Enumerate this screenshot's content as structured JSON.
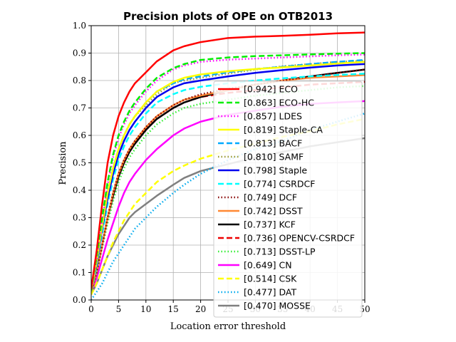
{
  "chart_data": {
    "type": "line",
    "title": "Precision plots of OPE on OTB2013",
    "xlabel": "Location error threshold",
    "ylabel": "Precision",
    "xlim": [
      0,
      50
    ],
    "ylim": [
      0,
      1.0
    ],
    "x_ticks": [
      0,
      5,
      10,
      15,
      20,
      25,
      30,
      35,
      40,
      45,
      50
    ],
    "y_ticks": [
      0.0,
      0.1,
      0.2,
      0.3,
      0.4,
      0.5,
      0.6,
      0.7,
      0.8,
      0.9,
      1.0
    ],
    "grid": true,
    "legend_position": "lower-right",
    "x": [
      0,
      1,
      2,
      3,
      4,
      5,
      6,
      7,
      8,
      10,
      12,
      15,
      17,
      20,
      25,
      30,
      35,
      40,
      45,
      50
    ],
    "series": [
      {
        "name": "ECO",
        "legend": "[0.942] ECO",
        "color": "#ff0000",
        "dash": "solid",
        "values": [
          0.04,
          0.18,
          0.35,
          0.5,
          0.6,
          0.67,
          0.72,
          0.76,
          0.79,
          0.83,
          0.87,
          0.91,
          0.925,
          0.94,
          0.955,
          0.96,
          0.963,
          0.967,
          0.972,
          0.975
        ]
      },
      {
        "name": "ECO-HC",
        "legend": "[0.863] ECO-HC",
        "color": "#00ee00",
        "dash": "dashed",
        "values": [
          0.035,
          0.16,
          0.3,
          0.43,
          0.53,
          0.6,
          0.65,
          0.69,
          0.72,
          0.77,
          0.81,
          0.845,
          0.86,
          0.875,
          0.884,
          0.889,
          0.892,
          0.895,
          0.898,
          0.9
        ]
      },
      {
        "name": "LDES",
        "legend": "[0.857] LDES",
        "color": "#ff00ff",
        "dash": "dotted",
        "values": [
          0.035,
          0.15,
          0.29,
          0.42,
          0.52,
          0.59,
          0.64,
          0.68,
          0.71,
          0.76,
          0.8,
          0.84,
          0.855,
          0.868,
          0.876,
          0.88,
          0.884,
          0.888,
          0.892,
          0.895
        ]
      },
      {
        "name": "Staple-CA",
        "legend": "[0.819] Staple-CA",
        "color": "#ffff00",
        "dash": "solid",
        "values": [
          0.03,
          0.14,
          0.27,
          0.39,
          0.48,
          0.55,
          0.6,
          0.64,
          0.67,
          0.72,
          0.76,
          0.795,
          0.81,
          0.822,
          0.834,
          0.842,
          0.848,
          0.855,
          0.862,
          0.868
        ]
      },
      {
        "name": "BACF",
        "legend": "[0.813] BACF",
        "color": "#00aaff",
        "dash": "dashed",
        "values": [
          0.03,
          0.14,
          0.27,
          0.39,
          0.48,
          0.55,
          0.6,
          0.64,
          0.67,
          0.72,
          0.76,
          0.79,
          0.805,
          0.815,
          0.83,
          0.842,
          0.85,
          0.86,
          0.868,
          0.875
        ]
      },
      {
        "name": "SAMF",
        "legend": "[0.810] SAMF",
        "color": "#999933",
        "dash": "dotted",
        "values": [
          0.03,
          0.14,
          0.27,
          0.39,
          0.48,
          0.55,
          0.6,
          0.64,
          0.67,
          0.71,
          0.75,
          0.79,
          0.8,
          0.81,
          0.825,
          0.84,
          0.852,
          0.86,
          0.868,
          0.872
        ]
      },
      {
        "name": "Staple",
        "legend": "[0.798] Staple",
        "color": "#0000ee",
        "dash": "solid",
        "values": [
          0.03,
          0.13,
          0.26,
          0.37,
          0.46,
          0.53,
          0.58,
          0.62,
          0.65,
          0.7,
          0.74,
          0.775,
          0.79,
          0.8,
          0.815,
          0.828,
          0.838,
          0.847,
          0.855,
          0.86
        ]
      },
      {
        "name": "CSRDCF",
        "legend": "[0.774] CSRDCF",
        "color": "#00ffff",
        "dash": "dashed",
        "values": [
          0.03,
          0.12,
          0.24,
          0.35,
          0.44,
          0.51,
          0.56,
          0.6,
          0.63,
          0.68,
          0.72,
          0.75,
          0.765,
          0.777,
          0.79,
          0.8,
          0.808,
          0.815,
          0.82,
          0.825
        ]
      },
      {
        "name": "DCF",
        "legend": "[0.749] DCF",
        "color": "#880000",
        "dash": "dotted",
        "values": [
          0.03,
          0.1,
          0.2,
          0.3,
          0.39,
          0.46,
          0.51,
          0.55,
          0.58,
          0.63,
          0.67,
          0.71,
          0.73,
          0.75,
          0.77,
          0.785,
          0.8,
          0.815,
          0.828,
          0.84
        ]
      },
      {
        "name": "DSST",
        "legend": "[0.742] DSST",
        "color": "#ff8833",
        "dash": "solid",
        "values": [
          0.03,
          0.1,
          0.2,
          0.3,
          0.39,
          0.46,
          0.51,
          0.55,
          0.58,
          0.63,
          0.67,
          0.71,
          0.73,
          0.745,
          0.765,
          0.785,
          0.8,
          0.81,
          0.815,
          0.82
        ]
      },
      {
        "name": "KCF",
        "legend": "[0.737] KCF",
        "color": "#000000",
        "dash": "solid",
        "values": [
          0.03,
          0.1,
          0.2,
          0.3,
          0.38,
          0.45,
          0.5,
          0.54,
          0.57,
          0.62,
          0.66,
          0.7,
          0.72,
          0.74,
          0.765,
          0.785,
          0.8,
          0.815,
          0.828,
          0.84
        ]
      },
      {
        "name": "OPENCV-CSRDCF",
        "legend": "[0.736] OPENCV-CSRDCF",
        "color": "#ee0000",
        "dash": "dashed",
        "values": [
          0.03,
          0.1,
          0.2,
          0.3,
          0.38,
          0.45,
          0.5,
          0.54,
          0.57,
          0.62,
          0.66,
          0.7,
          0.72,
          0.74,
          0.755,
          0.765,
          0.775,
          0.785,
          0.79,
          0.795
        ]
      },
      {
        "name": "DSST-LP",
        "legend": "[0.713] DSST-LP",
        "color": "#33ee33",
        "dash": "dotted",
        "values": [
          0.03,
          0.1,
          0.19,
          0.28,
          0.36,
          0.43,
          0.48,
          0.52,
          0.55,
          0.6,
          0.64,
          0.68,
          0.7,
          0.715,
          0.73,
          0.745,
          0.755,
          0.765,
          0.775,
          0.78
        ]
      },
      {
        "name": "CN",
        "legend": "[0.649] CN",
        "color": "#ff00ff",
        "dash": "solid",
        "values": [
          0.03,
          0.08,
          0.15,
          0.22,
          0.28,
          0.34,
          0.39,
          0.43,
          0.46,
          0.51,
          0.55,
          0.6,
          0.625,
          0.65,
          0.675,
          0.69,
          0.705,
          0.715,
          0.72,
          0.725
        ]
      },
      {
        "name": "CSK",
        "legend": "[0.514] CSK",
        "color": "#ffff00",
        "dash": "dashed",
        "values": [
          0.02,
          0.06,
          0.11,
          0.16,
          0.21,
          0.25,
          0.29,
          0.32,
          0.35,
          0.39,
          0.43,
          0.47,
          0.49,
          0.515,
          0.545,
          0.57,
          0.595,
          0.615,
          0.64,
          0.66
        ]
      },
      {
        "name": "DAT",
        "legend": "[0.477] DAT",
        "color": "#00aaee",
        "dash": "dotted",
        "values": [
          0.0,
          0.03,
          0.06,
          0.1,
          0.14,
          0.17,
          0.2,
          0.23,
          0.26,
          0.3,
          0.34,
          0.39,
          0.42,
          0.46,
          0.51,
          0.55,
          0.58,
          0.62,
          0.65,
          0.68
        ]
      },
      {
        "name": "MOSSE",
        "legend": "[0.470] MOSSE",
        "color": "#808080",
        "dash": "solid",
        "values": [
          0.02,
          0.06,
          0.11,
          0.16,
          0.2,
          0.24,
          0.27,
          0.3,
          0.32,
          0.35,
          0.38,
          0.42,
          0.445,
          0.47,
          0.495,
          0.52,
          0.54,
          0.56,
          0.575,
          0.59
        ]
      }
    ]
  }
}
